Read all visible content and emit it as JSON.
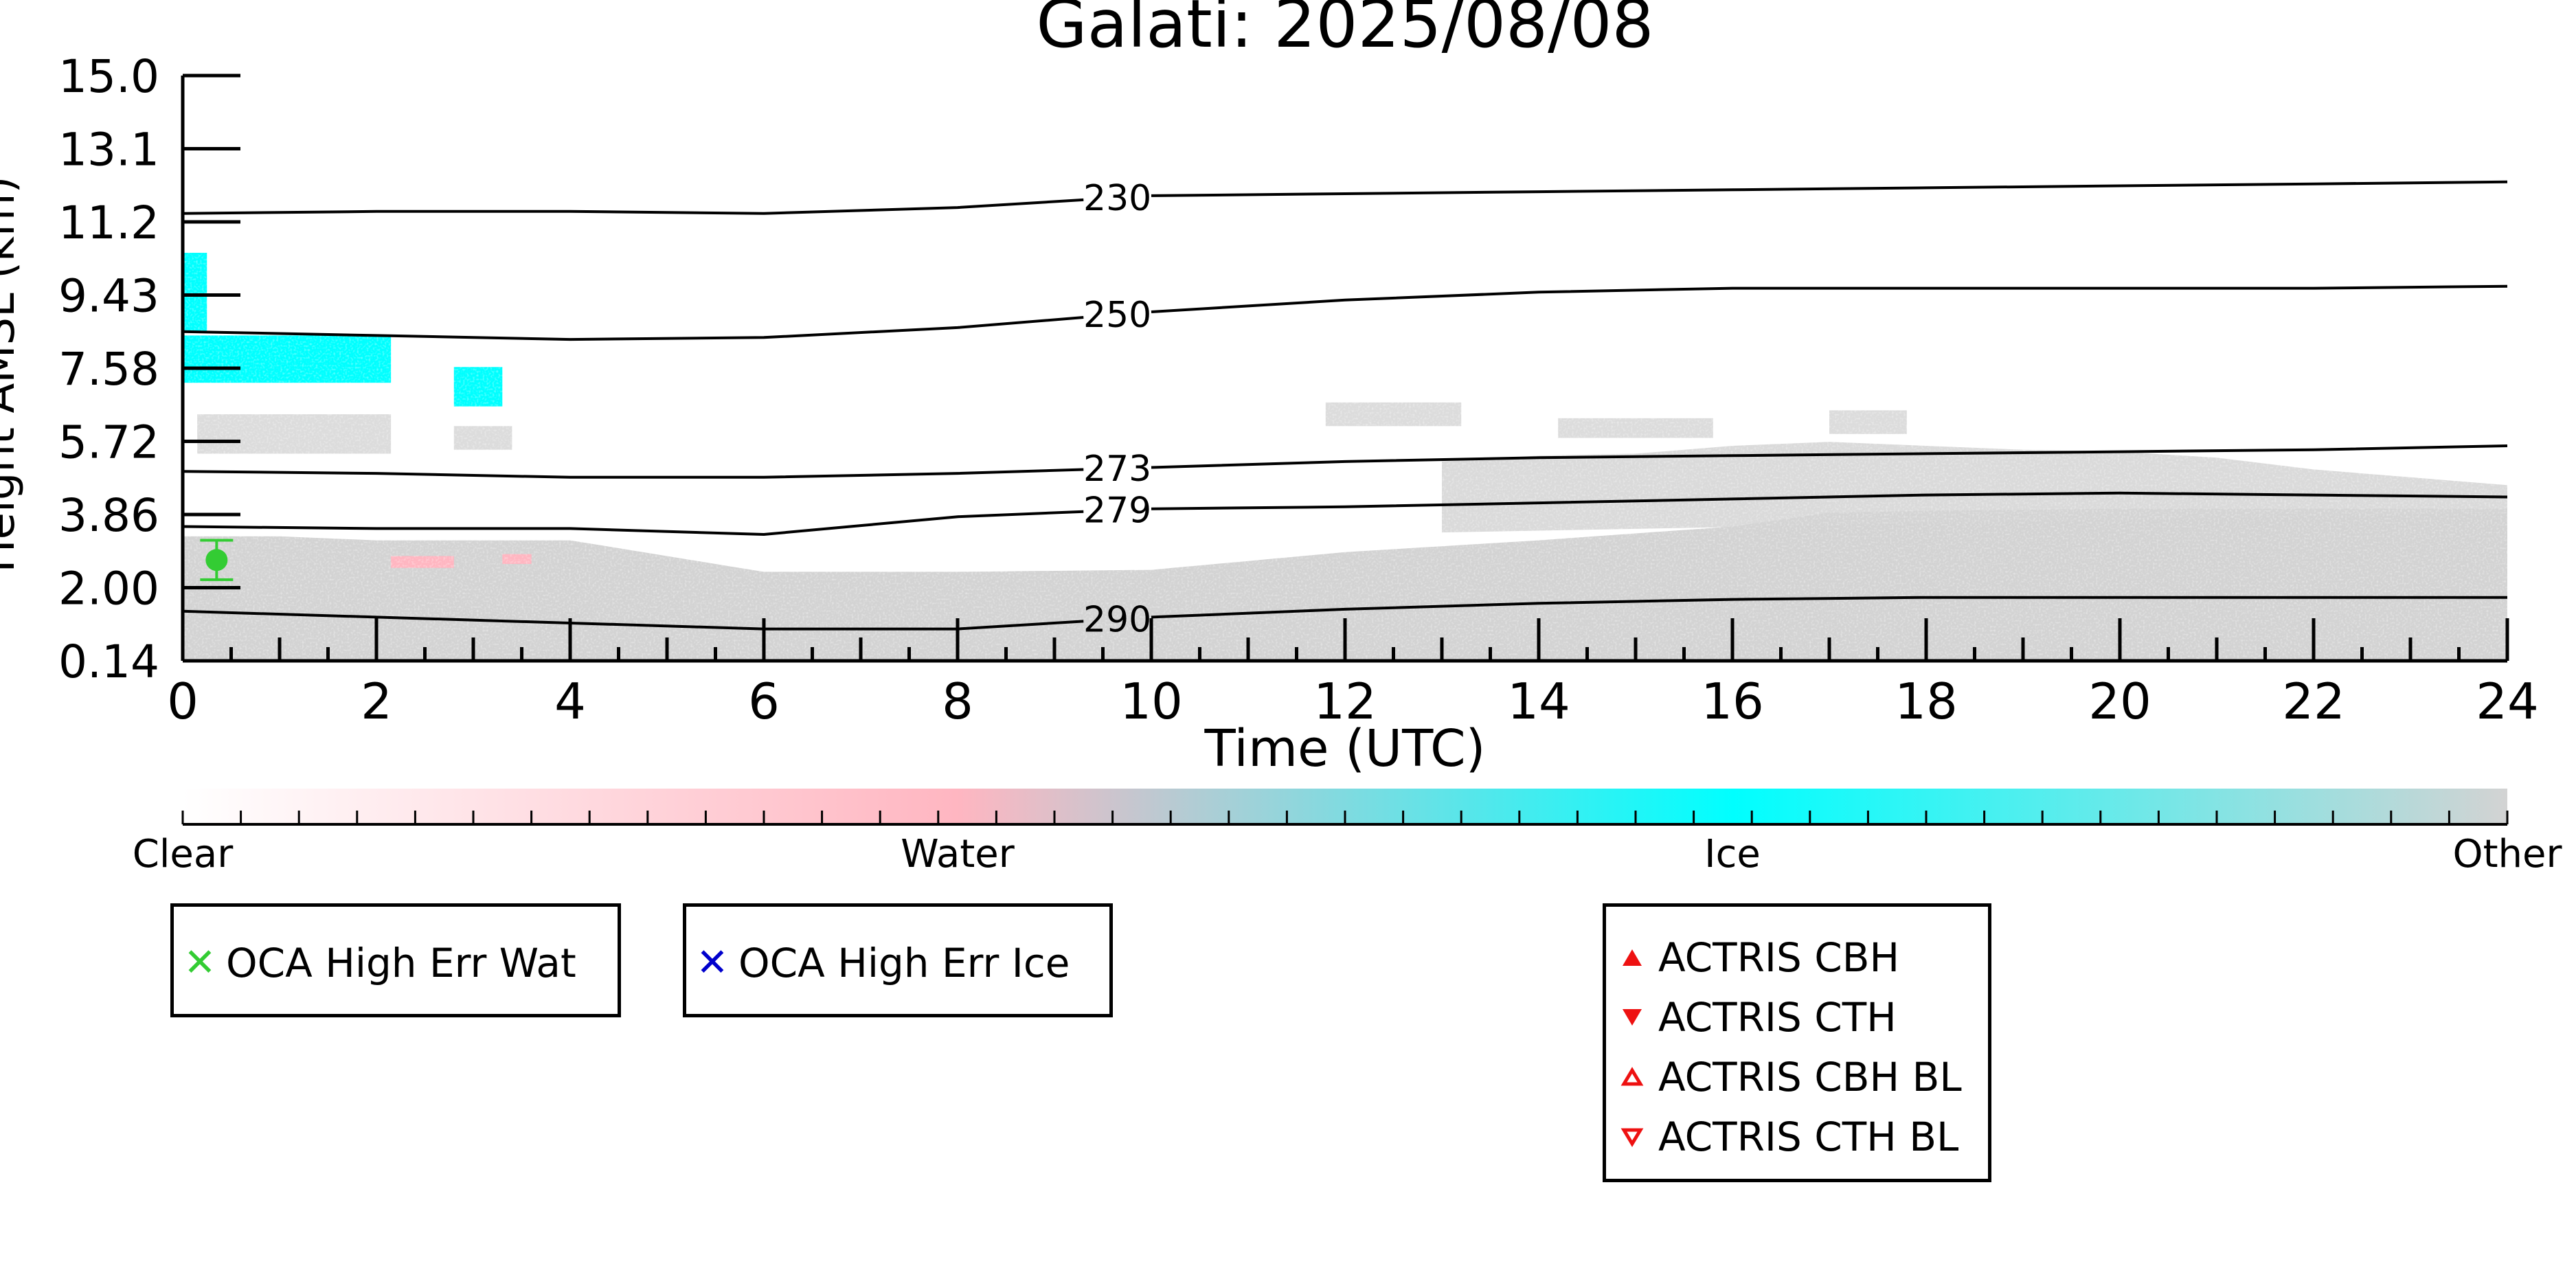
{
  "chart_data": {
    "type": "heatmap",
    "title": "Galati: 2025/08/08",
    "xlabel": "Time (UTC)",
    "ylabel": "Height AMSL (km)",
    "xlim": [
      0,
      24
    ],
    "ylim": [
      0.14,
      15.0
    ],
    "x_ticks": [
      "0",
      "2",
      "4",
      "6",
      "8",
      "10",
      "12",
      "14",
      "16",
      "18",
      "20",
      "22",
      "24"
    ],
    "y_ticks": [
      "15.0",
      "13.1",
      "11.2",
      "9.43",
      "7.58",
      "5.72",
      "3.86",
      "2.00",
      "0.14"
    ],
    "colorbar": {
      "labels": [
        "Clear",
        "Water",
        "Ice",
        "Other"
      ],
      "colors": [
        "#ffffff",
        "#ffb6c1",
        "#00ffff",
        "#d3d3d3"
      ]
    },
    "temperature_contours": [
      {
        "label": "230",
        "x": [
          0,
          2,
          4,
          6,
          8,
          10,
          12,
          14,
          16,
          18,
          20,
          22,
          24
        ],
        "y": [
          11.5,
          11.55,
          11.55,
          11.5,
          11.65,
          11.95,
          12.0,
          12.05,
          12.1,
          12.15,
          12.2,
          12.25,
          12.3
        ]
      },
      {
        "label": "250",
        "x": [
          0,
          2,
          4,
          6,
          8,
          10,
          12,
          14,
          16,
          18,
          20,
          22,
          24
        ],
        "y": [
          8.5,
          8.4,
          8.3,
          8.35,
          8.6,
          9.0,
          9.3,
          9.5,
          9.6,
          9.6,
          9.6,
          9.6,
          9.65
        ]
      },
      {
        "label": "273",
        "x": [
          0,
          2,
          4,
          6,
          8,
          10,
          12,
          14,
          16,
          18,
          20,
          22,
          24
        ],
        "y": [
          4.95,
          4.9,
          4.8,
          4.8,
          4.9,
          5.05,
          5.2,
          5.3,
          5.35,
          5.4,
          5.45,
          5.5,
          5.6
        ]
      },
      {
        "label": "279",
        "x": [
          0,
          2,
          4,
          6,
          8,
          10,
          12,
          14,
          16,
          18,
          20,
          22,
          24
        ],
        "y": [
          3.55,
          3.5,
          3.5,
          3.35,
          3.8,
          4.0,
          4.05,
          4.15,
          4.25,
          4.35,
          4.4,
          4.35,
          4.3
        ]
      },
      {
        "label": "290",
        "x": [
          0,
          2,
          4,
          6,
          8,
          10,
          12,
          14,
          16,
          18,
          20,
          22,
          24
        ],
        "y": [
          1.4,
          1.25,
          1.1,
          0.95,
          0.95,
          1.25,
          1.45,
          1.6,
          1.7,
          1.75,
          1.75,
          1.75,
          1.75
        ]
      }
    ],
    "oca_point": {
      "x": 0.35,
      "y": 2.7,
      "err_low": 2.2,
      "err_high": 3.2,
      "color": "#33cc33"
    },
    "legend_oca": [
      "OCA High Err Wat",
      "OCA High Err Ice"
    ],
    "legend_actris": [
      "ACTRIS CBH",
      "ACTRIS CTH",
      "ACTRIS CBH BL",
      "ACTRIS CTH BL"
    ],
    "legend_colors": {
      "oca_wat": "#33cc33",
      "oca_ice": "#0000cc",
      "actris": "#ee1111"
    },
    "icons": {
      "oca_wat": "x-mark-icon",
      "oca_ice": "x-mark-icon",
      "actris_cbh": "filled-triangle-up-icon",
      "actris_cth": "filled-triangle-down-icon",
      "actris_cbh_bl": "open-triangle-up-icon",
      "actris_cth_bl": "open-triangle-down-icon"
    }
  }
}
